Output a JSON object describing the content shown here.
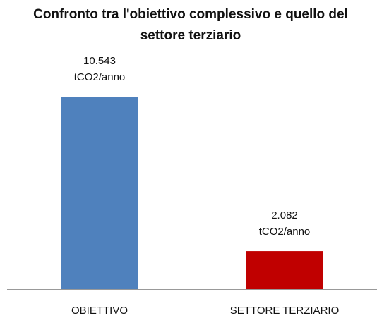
{
  "chart_data": {
    "type": "bar",
    "title": "Confronto tra l'obiettivo complessivo e quello del settore terziario",
    "categories": [
      "OBIETTIVO",
      "SETTORE TERZIARIO"
    ],
    "values": [
      10543,
      2082
    ],
    "value_labels": [
      [
        "10.543",
        "tCO2/anno"
      ],
      [
        "2.082",
        "tCO2/anno"
      ]
    ],
    "colors": [
      "#4f81bd",
      "#c00000"
    ]
  }
}
